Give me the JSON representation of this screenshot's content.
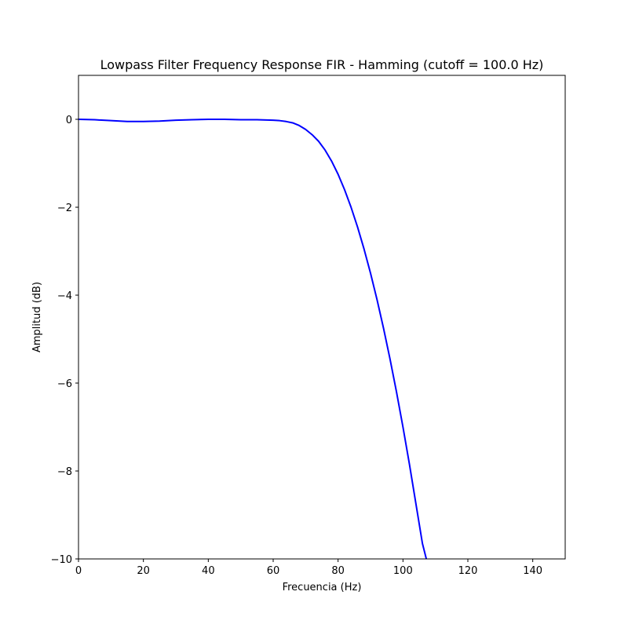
{
  "chart_data": {
    "type": "line",
    "title": "Lowpass Filter Frequency Response FIR - Hamming (cutoff = 100.0 Hz)",
    "xlabel": "Frecuencia (Hz)",
    "ylabel": "Amplitud (dB)",
    "xlim": [
      0,
      150
    ],
    "ylim": [
      -10,
      1
    ],
    "xticks": [
      0,
      20,
      40,
      60,
      80,
      100,
      120,
      140
    ],
    "yticks": [
      0,
      -2,
      -4,
      -6,
      -8,
      -10
    ],
    "xtick_labels": [
      "0",
      "20",
      "40",
      "60",
      "80",
      "100",
      "120",
      "140"
    ],
    "ytick_labels": [
      "0",
      "−2",
      "−4",
      "−6",
      "−8",
      "−10"
    ],
    "grid": false,
    "series": [
      {
        "color": "#0000ff",
        "x": [
          0,
          5,
          10,
          15,
          20,
          25,
          30,
          35,
          40,
          45,
          50,
          55,
          60,
          62,
          64,
          66,
          68,
          70,
          72,
          74,
          76,
          78,
          80,
          82,
          84,
          86,
          88,
          90,
          92,
          94,
          96,
          98,
          100,
          102,
          104,
          106,
          107.2
        ],
        "y": [
          0,
          -0.01,
          -0.03,
          -0.05,
          -0.05,
          -0.04,
          -0.02,
          -0.01,
          0,
          0,
          -0.01,
          -0.01,
          -0.02,
          -0.03,
          -0.05,
          -0.08,
          -0.14,
          -0.23,
          -0.35,
          -0.5,
          -0.7,
          -0.95,
          -1.25,
          -1.6,
          -2.0,
          -2.45,
          -2.95,
          -3.5,
          -4.1,
          -4.75,
          -5.45,
          -6.2,
          -7.0,
          -7.85,
          -8.75,
          -9.65,
          -10.0
        ]
      }
    ]
  }
}
